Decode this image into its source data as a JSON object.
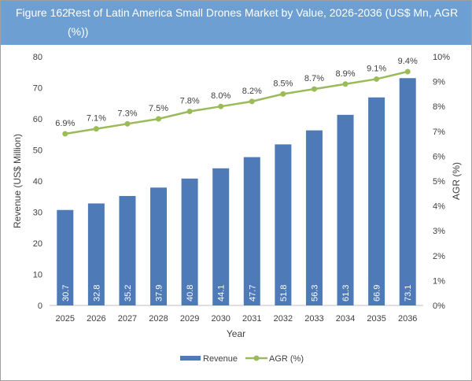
{
  "header": {
    "figure": "Figure 162",
    "title": "Rest of Latin America Small Drones Market by Value, 2026-2036 (US$ Mn, AGR (%))"
  },
  "chart_data": {
    "type": "bar+line",
    "categories": [
      "2025",
      "2026",
      "2027",
      "2028",
      "2029",
      "2030",
      "2031",
      "2032",
      "2033",
      "2034",
      "2035",
      "2036"
    ],
    "series": [
      {
        "name": "Revenue",
        "type": "bar",
        "axis": "left",
        "color": "#4f7ab8",
        "values": [
          30.7,
          32.8,
          35.2,
          37.9,
          40.8,
          44.1,
          47.7,
          51.8,
          56.3,
          61.3,
          66.9,
          73.1
        ],
        "labels": [
          "30.7",
          "32.8",
          "35.2",
          "37.9",
          "40.8",
          "44.1",
          "47.7",
          "51.8",
          "56.3",
          "61.3",
          "66.9",
          "73.1"
        ]
      },
      {
        "name": "AGR (%)",
        "type": "line",
        "axis": "right",
        "color": "#9bbb59",
        "values": [
          6.9,
          7.1,
          7.3,
          7.5,
          7.8,
          8.0,
          8.2,
          8.5,
          8.7,
          8.9,
          9.1,
          9.4
        ],
        "labels": [
          "6.9%",
          "7.1%",
          "7.3%",
          "7.5%",
          "7.8%",
          "8.0%",
          "8.2%",
          "8.5%",
          "8.7%",
          "8.9%",
          "9.1%",
          "9.4%"
        ]
      }
    ],
    "xlabel": "Year",
    "ylabel": "Revenue (US$ Million)",
    "y2label": "AGR (%)",
    "ylim": [
      0,
      80
    ],
    "y2lim": [
      0,
      10
    ],
    "yticks": [
      "0",
      "10",
      "20",
      "30",
      "40",
      "50",
      "60",
      "70",
      "80"
    ],
    "y2ticks": [
      "0%",
      "1%",
      "2%",
      "3%",
      "4%",
      "5%",
      "6%",
      "7%",
      "8%",
      "9%",
      "10%"
    ],
    "grid": false,
    "legend": "bottom"
  }
}
